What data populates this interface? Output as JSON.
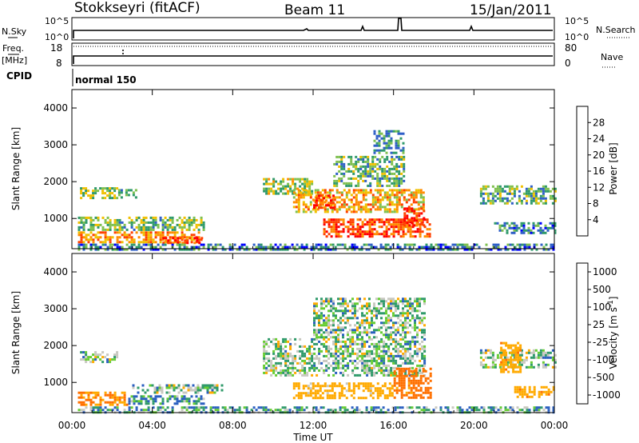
{
  "header": {
    "station": "Stokkseyri (fitACF)",
    "beam": "Beam 11",
    "date": "15/Jan/2011"
  },
  "top_panel": {
    "left_label": "N.Sky",
    "left_ticks": [
      "10^5",
      "10^0"
    ],
    "right_label": "N.Search",
    "right_ticks": [
      "10^5",
      "10^0"
    ]
  },
  "freq_panel": {
    "left_label_1": "Freq.",
    "left_label_2": "[MHz]",
    "left_ticks": [
      "18",
      "8"
    ],
    "right_label": "Nave",
    "right_ticks": [
      "80",
      "0"
    ]
  },
  "cpid": {
    "label": "CPID",
    "mode": "normal 150"
  },
  "x_axis": {
    "ticks": [
      "00:00",
      "04:00",
      "08:00",
      "12:00",
      "16:00",
      "20:00",
      "00:00"
    ],
    "label": "Time UT"
  },
  "colors": {
    "power_scale": [
      "#0000ff",
      "#2f5fc8",
      "#2f9a6a",
      "#7fc050",
      "#f0c000",
      "#ff8c00",
      "#ff4000",
      "#ff0000"
    ],
    "velocity_scale": [
      "#0000c0",
      "#2a5fc0",
      "#2f9a6a",
      "#66cc33",
      "#c8c8c0",
      "#ffaa00",
      "#ff7000",
      "#ff0000"
    ]
  },
  "chart_data": [
    {
      "type": "heatmap",
      "panel": "power",
      "ylabel": "Slant Range [km]",
      "xlabel": "",
      "xlim": [
        0,
        24
      ],
      "ylim": [
        180,
        4500
      ],
      "y_ticks": [
        "1000",
        "2000",
        "3000",
        "4000"
      ],
      "colorbar": {
        "label": "Power [dB]",
        "ticks": [
          "4",
          "8",
          "12",
          "16",
          "20",
          "24",
          "28"
        ]
      },
      "regions": [
        {
          "t0": 0.4,
          "t1": 2.3,
          "r0": 1550,
          "r1": 1850,
          "v": 14
        },
        {
          "t0": 2.3,
          "t1": 3.2,
          "r0": 1600,
          "r1": 1800,
          "v": 10
        },
        {
          "t0": 0.3,
          "t1": 6.6,
          "r0": 700,
          "r1": 1050,
          "v": 13
        },
        {
          "t0": 0.3,
          "t1": 6.4,
          "r0": 350,
          "r1": 650,
          "v": 22
        },
        {
          "t0": 4.5,
          "t1": 6.5,
          "r0": 350,
          "r1": 500,
          "v": 27
        },
        {
          "t0": 9.5,
          "t1": 12.0,
          "r0": 1700,
          "r1": 2100,
          "v": 15
        },
        {
          "t0": 11.0,
          "t1": 17.5,
          "r0": 1200,
          "r1": 1800,
          "v": 20
        },
        {
          "t0": 12.0,
          "t1": 13.0,
          "r0": 1300,
          "r1": 1650,
          "v": 26
        },
        {
          "t0": 12.5,
          "t1": 17.8,
          "r0": 500,
          "r1": 1000,
          "v": 26
        },
        {
          "t0": 16.5,
          "t1": 17.5,
          "r0": 800,
          "r1": 1300,
          "v": 29
        },
        {
          "t0": 13.0,
          "t1": 16.5,
          "r0": 1900,
          "r1": 2700,
          "v": 12
        },
        {
          "t0": 15.0,
          "t1": 16.5,
          "r0": 2800,
          "r1": 3400,
          "v": 10
        },
        {
          "t0": 20.3,
          "t1": 24.0,
          "r0": 1400,
          "r1": 1900,
          "v": 12
        },
        {
          "t0": 21.0,
          "t1": 24.0,
          "r0": 600,
          "r1": 900,
          "v": 9
        },
        {
          "t0": 0.3,
          "t1": 24.0,
          "r0": 180,
          "r1": 320,
          "v": 8
        }
      ]
    },
    {
      "type": "heatmap",
      "panel": "velocity",
      "ylabel": "Slant Range [km]",
      "xlabel": "Time UT",
      "xlim": [
        0,
        24
      ],
      "ylim": [
        180,
        4500
      ],
      "y_ticks": [
        "1000",
        "2000",
        "3000",
        "4000"
      ],
      "colorbar": {
        "label": "Velocity [m s^-1]",
        "ticks": [
          "1000",
          "500",
          "100",
          "25",
          "-25",
          "-100",
          "-500",
          "-1000"
        ]
      },
      "regions": [
        {
          "t0": 0.4,
          "t1": 2.3,
          "r0": 1550,
          "r1": 1850,
          "v": 0
        },
        {
          "t0": 0.3,
          "t1": 2.8,
          "r0": 400,
          "r1": 750,
          "v": -500
        },
        {
          "t0": 2.8,
          "t1": 6.6,
          "r0": 400,
          "r1": 650,
          "v": 80
        },
        {
          "t0": 3.0,
          "t1": 7.5,
          "r0": 700,
          "r1": 950,
          "v": 0
        },
        {
          "t0": 9.5,
          "t1": 17.5,
          "r0": 1200,
          "r1": 2200,
          "v": 0
        },
        {
          "t0": 12.0,
          "t1": 17.5,
          "r0": 2200,
          "r1": 3300,
          "v": 0
        },
        {
          "t0": 11.0,
          "t1": 16.0,
          "r0": 600,
          "r1": 1000,
          "v": -200
        },
        {
          "t0": 16.0,
          "t1": 17.8,
          "r0": 600,
          "r1": 1400,
          "v": -600
        },
        {
          "t0": 20.3,
          "t1": 24.0,
          "r0": 1400,
          "r1": 1900,
          "v": 0
        },
        {
          "t0": 21.3,
          "t1": 22.3,
          "r0": 1300,
          "r1": 2100,
          "v": -400
        },
        {
          "t0": 22.0,
          "t1": 24.0,
          "r0": 600,
          "r1": 900,
          "v": -400
        },
        {
          "t0": 0.3,
          "t1": 24.0,
          "r0": 180,
          "r1": 350,
          "v": 60
        }
      ]
    }
  ]
}
